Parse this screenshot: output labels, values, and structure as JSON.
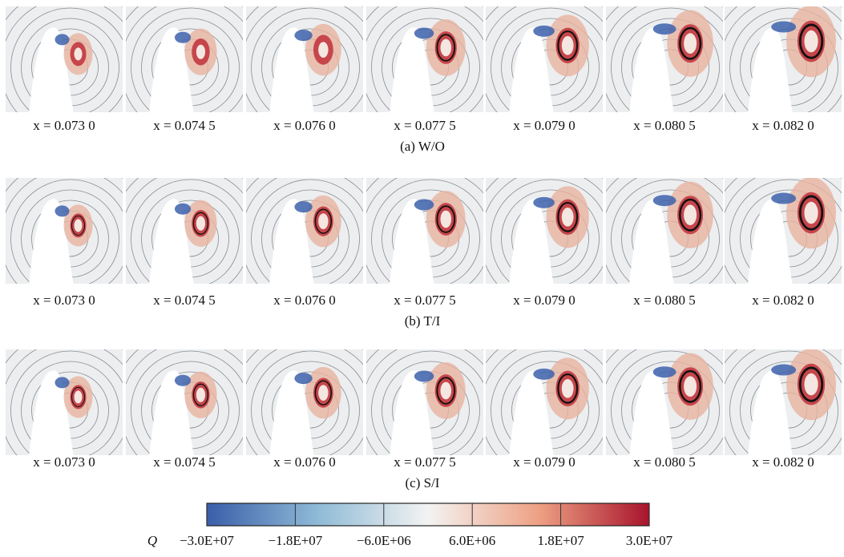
{
  "rows": [
    {
      "caption": "(a) W/O",
      "panels": [
        "x = 0.073 0",
        "x = 0.074 5",
        "x = 0.076 0",
        "x = 0.077 5",
        "x = 0.079 0",
        "x = 0.080 5",
        "x = 0.082 0"
      ]
    },
    {
      "caption": "(b) T/I",
      "panels": [
        "x = 0.073 0",
        "x = 0.074 5",
        "x = 0.076 0",
        "x = 0.077 5",
        "x = 0.079 0",
        "x = 0.080 5",
        "x = 0.082 0"
      ]
    },
    {
      "caption": "(c) S/I",
      "panels": [
        "x = 0.073 0",
        "x = 0.074 5",
        "x = 0.076 0",
        "x = 0.077 5",
        "x = 0.079 0",
        "x = 0.080 5",
        "x = 0.082 0"
      ]
    }
  ],
  "colorbar": {
    "symbol": "Q",
    "ticks": [
      {
        "value": -30000000,
        "label": "−3.0E+07"
      },
      {
        "value": -18000000,
        "label": "−1.8E+07"
      },
      {
        "value": -6000000,
        "label": "−6.0E+06"
      },
      {
        "value": 6000000,
        "label": "6.0E+06"
      },
      {
        "value": 18000000,
        "label": "1.8E+07"
      },
      {
        "value": 30000000,
        "label": "3.0E+07"
      }
    ]
  }
}
